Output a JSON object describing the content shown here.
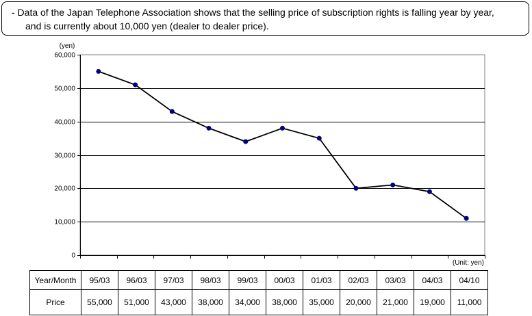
{
  "note": {
    "line1": "- Data of the Japan Telephone Association shows that the selling price of subscription rights is falling year by year,",
    "line2": "and is currently about 10,000 yen (dealer to dealer price)."
  },
  "chart_data": {
    "type": "line",
    "ylabel": "(yen)",
    "ylim": [
      0,
      60000
    ],
    "yticks": [
      "0",
      "10,000",
      "20,000",
      "30,000",
      "40,000",
      "50,000",
      "60,000"
    ],
    "categories": [
      "95/03",
      "96/03",
      "97/03",
      "98/03",
      "99/03",
      "00/03",
      "01/03",
      "02/03",
      "03/03",
      "04/03",
      "04/10"
    ],
    "series": [
      {
        "values": [
          55000,
          51000,
          43000,
          38000,
          34000,
          38000,
          35000,
          20000,
          21000,
          19000,
          11000
        ]
      }
    ],
    "grid": true,
    "colors": {
      "line": "#000000",
      "marker": "#000080",
      "grid": "#000000"
    }
  },
  "unit_note": "(Unit: yen)",
  "table": {
    "row1_header": "Year/Month",
    "row2_header": "Price",
    "prices": [
      "55,000",
      "51,000",
      "43,000",
      "38,000",
      "34,000",
      "38,000",
      "35,000",
      "20,000",
      "21,000",
      "19,000",
      "11,000"
    ]
  }
}
